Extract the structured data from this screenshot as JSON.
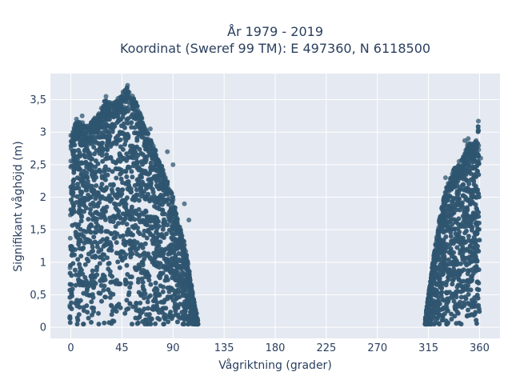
{
  "chart_data": {
    "type": "scatter",
    "title_line1": "År 1979 - 2019",
    "title_line2": "Koordinat (Sweref 99 TM): E 497360, N 6118500",
    "xlabel": "Vågriktning (grader)",
    "ylabel": "Signifikant våghöjd (m)",
    "xlim": [
      -18,
      378
    ],
    "ylim": [
      -0.17,
      3.9
    ],
    "x_ticks": [
      0,
      45,
      90,
      135,
      180,
      225,
      270,
      315,
      360
    ],
    "x_tick_labels": [
      "0",
      "45",
      "90",
      "135",
      "180",
      "225",
      "270",
      "315",
      "360"
    ],
    "y_ticks": [
      0,
      0.5,
      1,
      1.5,
      2,
      2.5,
      3,
      3.5
    ],
    "y_tick_labels": [
      "0",
      "0,5",
      "1",
      "1,5",
      "2",
      "2,5",
      "3",
      "3,5"
    ],
    "grid": true,
    "marker_color": "#2f5570",
    "plot_background": "#e5e9f1",
    "envelope": {
      "description_free": true,
      "cluster1": {
        "x": [
          -1,
          0,
          5,
          10,
          15,
          20,
          25,
          30,
          35,
          40,
          45,
          50,
          55,
          60,
          65,
          70,
          75,
          80,
          85,
          90,
          95,
          100,
          105,
          108,
          111,
          112
        ],
        "ymax": [
          0.2,
          2.9,
          3.2,
          3.15,
          3.1,
          3.2,
          3.3,
          3.5,
          3.45,
          3.5,
          3.6,
          3.7,
          3.55,
          3.35,
          3.1,
          2.9,
          2.7,
          2.5,
          2.25,
          2.0,
          1.6,
          1.3,
          0.8,
          0.45,
          0.2,
          0.1
        ],
        "ymin": 0.0
      },
      "cluster2": {
        "x": [
          312,
          315,
          318,
          322,
          326,
          330,
          334,
          338,
          342,
          346,
          350,
          354,
          357,
          359,
          360
        ],
        "ymax": [
          0.1,
          0.5,
          0.9,
          1.4,
          1.8,
          2.1,
          2.3,
          2.45,
          2.5,
          2.65,
          2.85,
          2.8,
          2.9,
          3.15,
          2.2
        ],
        "ymin": 0.0
      },
      "outliers": [
        {
          "x": 50,
          "y": 3.72
        },
        {
          "x": 46,
          "y": 3.62
        },
        {
          "x": 31,
          "y": 3.55
        },
        {
          "x": 10,
          "y": 3.25
        },
        {
          "x": 5,
          "y": 3.2
        },
        {
          "x": 0,
          "y": 2.95
        },
        {
          "x": 2,
          "y": 2.55
        },
        {
          "x": 70,
          "y": 3.05
        },
        {
          "x": 85,
          "y": 2.7
        },
        {
          "x": 90,
          "y": 2.5
        },
        {
          "x": 100,
          "y": 1.9
        },
        {
          "x": 104,
          "y": 1.65
        },
        {
          "x": 359,
          "y": 3.17
        },
        {
          "x": 350,
          "y": 2.9
        },
        {
          "x": 347,
          "y": 2.87
        },
        {
          "x": 342,
          "y": 2.55
        },
        {
          "x": 338,
          "y": 2.42
        },
        {
          "x": 330,
          "y": 2.3
        },
        {
          "x": 361,
          "y": 2.6
        },
        {
          "x": 355,
          "y": 2.7
        }
      ]
    }
  }
}
